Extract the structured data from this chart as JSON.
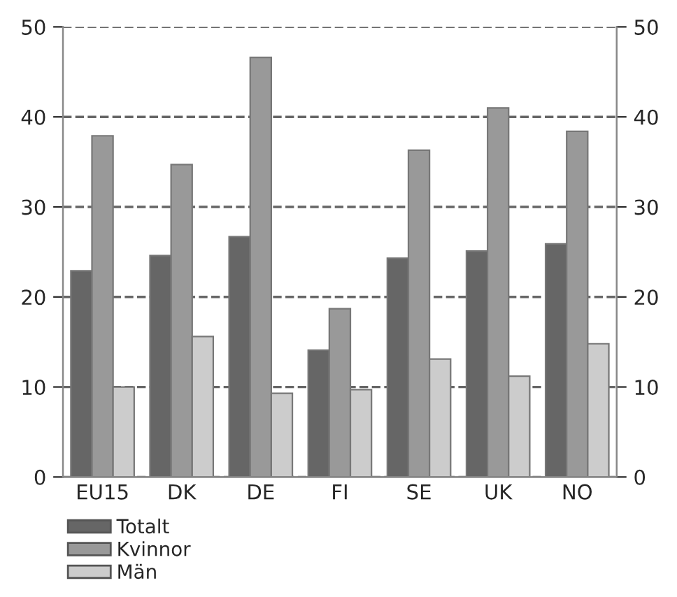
{
  "chart_data": {
    "type": "bar",
    "categories": [
      "EU15",
      "DK",
      "DE",
      "FI",
      "SE",
      "UK",
      "NO"
    ],
    "series": [
      {
        "name": "Totalt",
        "color": "#666666",
        "values": [
          22.9,
          24.6,
          26.7,
          14.1,
          24.3,
          25.1,
          25.9
        ]
      },
      {
        "name": "Kvinnor",
        "color": "#999999",
        "values": [
          37.9,
          34.7,
          46.6,
          18.7,
          36.3,
          41.0,
          38.4
        ]
      },
      {
        "name": "Män",
        "color": "#cccccc",
        "values": [
          10.0,
          15.6,
          9.3,
          9.7,
          13.1,
          11.2,
          14.8
        ]
      }
    ],
    "ylim": [
      0,
      50
    ],
    "yticks": [
      0,
      10,
      20,
      30,
      40,
      50
    ],
    "y2lim": [
      0,
      50
    ],
    "y2ticks": [
      0,
      10,
      20,
      30,
      40,
      50
    ],
    "grid": "y",
    "line_style": "dashed",
    "legend": "bottom left"
  }
}
